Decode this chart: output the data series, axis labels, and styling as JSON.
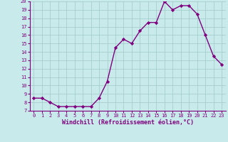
{
  "x": [
    0,
    1,
    2,
    3,
    4,
    5,
    6,
    7,
    8,
    9,
    10,
    11,
    12,
    13,
    14,
    15,
    16,
    17,
    18,
    19,
    20,
    21,
    22,
    23
  ],
  "y": [
    8.5,
    8.5,
    8.0,
    7.5,
    7.5,
    7.5,
    7.5,
    7.5,
    8.5,
    10.5,
    14.5,
    15.5,
    15.0,
    16.5,
    17.5,
    17.5,
    20.0,
    19.0,
    19.5,
    19.5,
    18.5,
    16.0,
    13.5,
    12.5
  ],
  "xlabel": "Windchill (Refroidissement éolien,°C)",
  "ylim": [
    7,
    20
  ],
  "xlim": [
    -0.5,
    23.5
  ],
  "yticks": [
    7,
    8,
    9,
    10,
    11,
    12,
    13,
    14,
    15,
    16,
    17,
    18,
    19,
    20
  ],
  "xticks": [
    0,
    1,
    2,
    3,
    4,
    5,
    6,
    7,
    8,
    9,
    10,
    11,
    12,
    13,
    14,
    15,
    16,
    17,
    18,
    19,
    20,
    21,
    22,
    23
  ],
  "line_color": "#800080",
  "marker_color": "#800080",
  "bg_color": "#c8eaea",
  "grid_color": "#a0c8c8",
  "label_color": "#800080",
  "tick_color": "#800080",
  "spine_color": "#800080"
}
